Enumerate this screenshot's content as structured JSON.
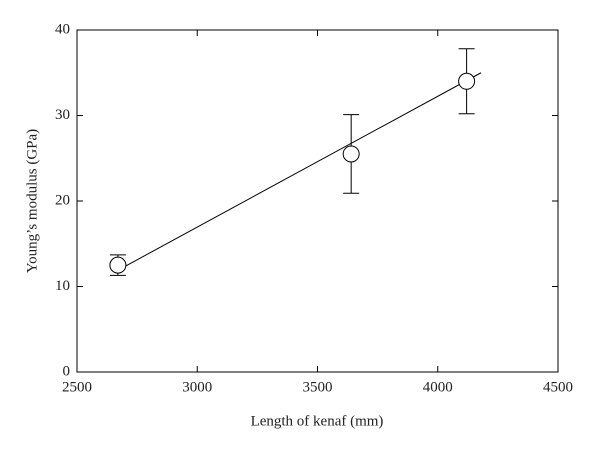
{
  "chart_data": {
    "type": "scatter",
    "xlabel": "Length of kenaf (mm)",
    "ylabel": "Young’s modulus (GPa)",
    "xlim": [
      2500,
      4500
    ],
    "xticks": [
      2500,
      3000,
      3500,
      4000,
      4500
    ],
    "ylim": [
      0,
      40
    ],
    "yticks": [
      0,
      10,
      20,
      30,
      40
    ],
    "color": "#000000",
    "x": [
      2670,
      3640,
      4120
    ],
    "values": [
      12.5,
      25.5,
      34
    ],
    "errors": [
      1.2,
      4.6,
      3.8
    ],
    "fit_line": {
      "x": [
        2670,
        4180
      ],
      "values": [
        11.9,
        35.0
      ]
    }
  }
}
